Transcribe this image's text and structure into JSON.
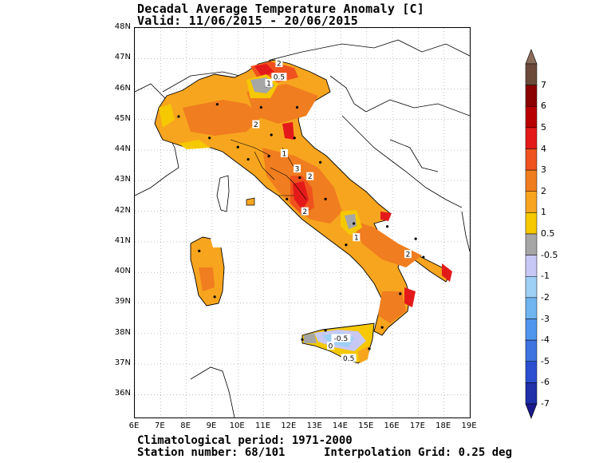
{
  "title": {
    "line1": "Decadal Average Temperature Anomaly [C]",
    "line2": "Valid: 11/06/2015 - 20/06/2015"
  },
  "footer": {
    "period": "Climatological period: 1971-2000",
    "stations": "Station number: 68/101",
    "grid": "Interpolation Grid: 0.25 deg"
  },
  "axes": {
    "lat_labels": [
      "48N",
      "47N",
      "46N",
      "45N",
      "44N",
      "43N",
      "42N",
      "41N",
      "40N",
      "39N",
      "38N",
      "37N",
      "36N"
    ],
    "lon_labels": [
      "6E",
      "7E",
      "8E",
      "9E",
      "10E",
      "11E",
      "12E",
      "13E",
      "14E",
      "15E",
      "16E",
      "17E",
      "18E",
      "19E"
    ],
    "lat_range": [
      35.25,
      48
    ],
    "lon_range": [
      6,
      19
    ],
    "grid": true
  },
  "colorbar": {
    "labels": [
      "7",
      "6",
      "5",
      "4",
      "3",
      "2",
      "1",
      "0.5",
      "-0.5",
      "-1",
      "-2",
      "-3",
      "-4",
      "-5",
      "-6",
      "-7"
    ],
    "colors": [
      "#6b4a3a",
      "#8b0000",
      "#b80000",
      "#e41a1a",
      "#f0521e",
      "#f07d1f",
      "#f7a51f",
      "#f5c800",
      "#a6a6a6",
      "#c8c8f5",
      "#9ecff5",
      "#6fb5f0",
      "#4f96ee",
      "#3e74e0",
      "#2b4fcf",
      "#2030a8"
    ],
    "top_arrow_color": "#8b6b5a",
    "bottom_arrow_color": "#1a1a8a"
  },
  "map_labels": [
    {
      "text": "2",
      "lon": 11.6,
      "lat": 46.85
    },
    {
      "text": "0.5",
      "lon": 11.6,
      "lat": 46.4
    },
    {
      "text": "1",
      "lon": 11.2,
      "lat": 46.2
    },
    {
      "text": "2",
      "lon": 10.7,
      "lat": 44.85
    },
    {
      "text": "1",
      "lon": 11.8,
      "lat": 43.9
    },
    {
      "text": "3",
      "lon": 12.3,
      "lat": 43.4
    },
    {
      "text": "2",
      "lon": 12.8,
      "lat": 43.15
    },
    {
      "text": "2",
      "lon": 12.6,
      "lat": 42.0
    },
    {
      "text": "1",
      "lon": 14.6,
      "lat": 41.15
    },
    {
      "text": "2",
      "lon": 16.6,
      "lat": 40.6
    },
    {
      "text": "-0.5",
      "lon": 14.0,
      "lat": 37.85
    },
    {
      "text": "0",
      "lon": 13.6,
      "lat": 37.6
    },
    {
      "text": "0.5",
      "lon": 14.3,
      "lat": 37.2
    }
  ]
}
